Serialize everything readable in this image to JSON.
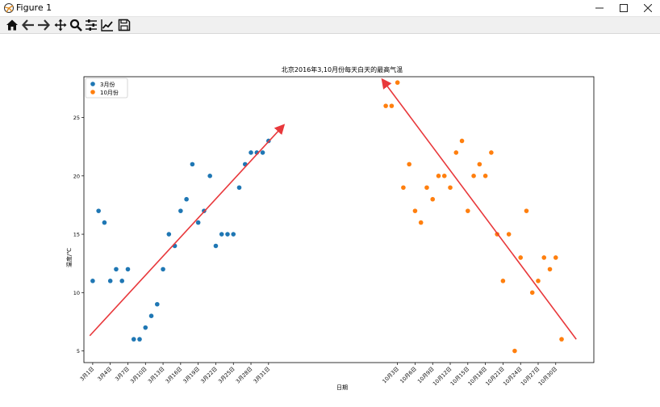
{
  "window": {
    "title": "Figure 1",
    "minimize_icon": "minimize-icon",
    "maximize_icon": "maximize-icon",
    "close_icon": "close-icon"
  },
  "toolbar": {
    "tools": [
      {
        "name": "home-icon"
      },
      {
        "name": "back-arrow-icon"
      },
      {
        "name": "forward-arrow-icon"
      },
      {
        "name": "pan-icon"
      },
      {
        "name": "zoom-icon"
      },
      {
        "name": "subplots-icon"
      },
      {
        "name": "edit-axis-icon"
      },
      {
        "name": "save-icon"
      }
    ]
  },
  "colors": {
    "march": "#1f77b4",
    "october": "#ff7f0e",
    "arrow": "#e8383b"
  },
  "chart_data": {
    "type": "scatter",
    "title": "北京2016年3,10月份每天白天的最高气温",
    "xlabel": "日期",
    "ylabel": "温度/℃",
    "ylim": [
      4,
      28.5
    ],
    "xlim": [
      -1.5,
      85.5
    ],
    "yticks": [
      5,
      10,
      15,
      20,
      25
    ],
    "xticks": [
      {
        "x": 0,
        "label": "3月1日"
      },
      {
        "x": 3,
        "label": "3月4日"
      },
      {
        "x": 6,
        "label": "3月7日"
      },
      {
        "x": 9,
        "label": "3月10日"
      },
      {
        "x": 12,
        "label": "3月13日"
      },
      {
        "x": 15,
        "label": "3月16日"
      },
      {
        "x": 18,
        "label": "3月19日"
      },
      {
        "x": 21,
        "label": "3月22日"
      },
      {
        "x": 24,
        "label": "3月25日"
      },
      {
        "x": 27,
        "label": "3月28日"
      },
      {
        "x": 30,
        "label": "3月31日"
      },
      {
        "x": 52,
        "label": "10月3日"
      },
      {
        "x": 55,
        "label": "10月6日"
      },
      {
        "x": 58,
        "label": "10月9日"
      },
      {
        "x": 61,
        "label": "10月12日"
      },
      {
        "x": 64,
        "label": "10月15日"
      },
      {
        "x": 67,
        "label": "10月18日"
      },
      {
        "x": 70,
        "label": "10月21日"
      },
      {
        "x": 73,
        "label": "10月24日"
      },
      {
        "x": 76,
        "label": "10月27日"
      },
      {
        "x": 79,
        "label": "10月30日"
      }
    ],
    "series": [
      {
        "name": "3月份",
        "color": "#1f77b4",
        "x": [
          0,
          1,
          2,
          3,
          4,
          5,
          6,
          7,
          8,
          9,
          10,
          11,
          12,
          13,
          14,
          15,
          16,
          17,
          18,
          19,
          20,
          21,
          22,
          23,
          24,
          25,
          26,
          27,
          28,
          29,
          30
        ],
        "values": [
          11,
          17,
          16,
          11,
          12,
          11,
          12,
          6,
          6,
          7,
          8,
          9,
          12,
          15,
          14,
          17,
          18,
          21,
          16,
          17,
          20,
          14,
          15,
          15,
          15,
          19,
          21,
          22,
          22,
          22,
          23
        ]
      },
      {
        "name": "10月份",
        "color": "#ff7f0e",
        "x": [
          50,
          51,
          52,
          53,
          54,
          55,
          56,
          57,
          58,
          59,
          60,
          61,
          62,
          63,
          64,
          65,
          66,
          67,
          68,
          69,
          70,
          71,
          72,
          73,
          74,
          75,
          76,
          77,
          78,
          79,
          80
        ],
        "values": [
          26,
          26,
          28,
          19,
          21,
          17,
          16,
          19,
          18,
          20,
          20,
          19,
          22,
          23,
          17,
          20,
          21,
          20,
          22,
          15,
          11,
          15,
          5,
          13,
          17,
          10,
          11,
          13,
          12,
          13,
          6
        ]
      }
    ],
    "annotations": [
      {
        "type": "arrow",
        "from": [
          -0.5,
          6.3
        ],
        "to": [
          32.5,
          24.3
        ],
        "color": "#e8383b"
      },
      {
        "type": "arrow",
        "from": [
          82.5,
          6.0
        ],
        "to": [
          49.5,
          28.2
        ],
        "color": "#e8383b"
      }
    ],
    "legend": "top-left"
  }
}
